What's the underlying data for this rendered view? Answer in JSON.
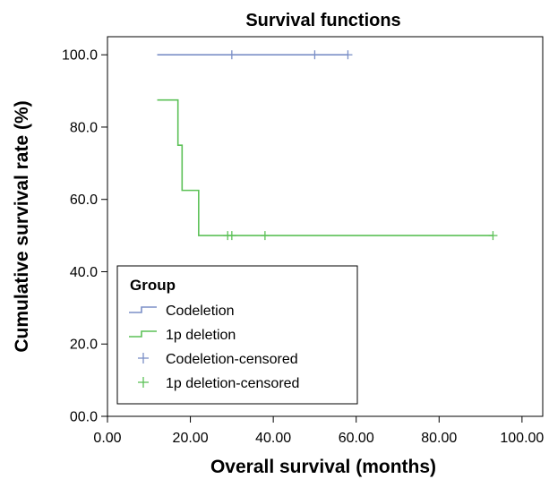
{
  "chart_data": {
    "type": "line",
    "title": "Survival functions",
    "xlabel": "Overall survival (months)",
    "ylabel": "Cumulative survival rate (%)",
    "xlim": [
      0,
      105
    ],
    "ylim": [
      0,
      105
    ],
    "x_ticks": [
      0,
      20,
      40,
      60,
      80,
      100
    ],
    "x_tick_labels": [
      "0.00",
      "20.00",
      "40.00",
      "60.00",
      "80.00",
      "100.00"
    ],
    "y_ticks": [
      0,
      20,
      40,
      60,
      80,
      100
    ],
    "y_tick_labels": [
      "00.0",
      "20.0",
      "40.0",
      "60.0",
      "80.0",
      "100.0"
    ],
    "grid": false,
    "legend": {
      "title": "Group",
      "placement": "bottom-left",
      "entries": [
        "Codeletion",
        "1p deletion",
        "Codeletion-censored",
        "1p deletion-censored"
      ]
    },
    "series": [
      {
        "name": "Codeletion",
        "color": "#7b8fc7",
        "steps": [
          [
            12,
            100
          ],
          [
            58,
            100
          ]
        ],
        "censored": [
          [
            30,
            100
          ],
          [
            50,
            100
          ],
          [
            58,
            100
          ]
        ]
      },
      {
        "name": "1p deletion",
        "color": "#5cc157",
        "steps": [
          [
            12,
            87.5
          ],
          [
            17,
            75
          ],
          [
            18,
            62.5
          ],
          [
            22,
            50
          ],
          [
            93,
            50
          ]
        ],
        "censored": [
          [
            29,
            50
          ],
          [
            30,
            50
          ],
          [
            38,
            50
          ],
          [
            93,
            50
          ]
        ]
      }
    ]
  }
}
